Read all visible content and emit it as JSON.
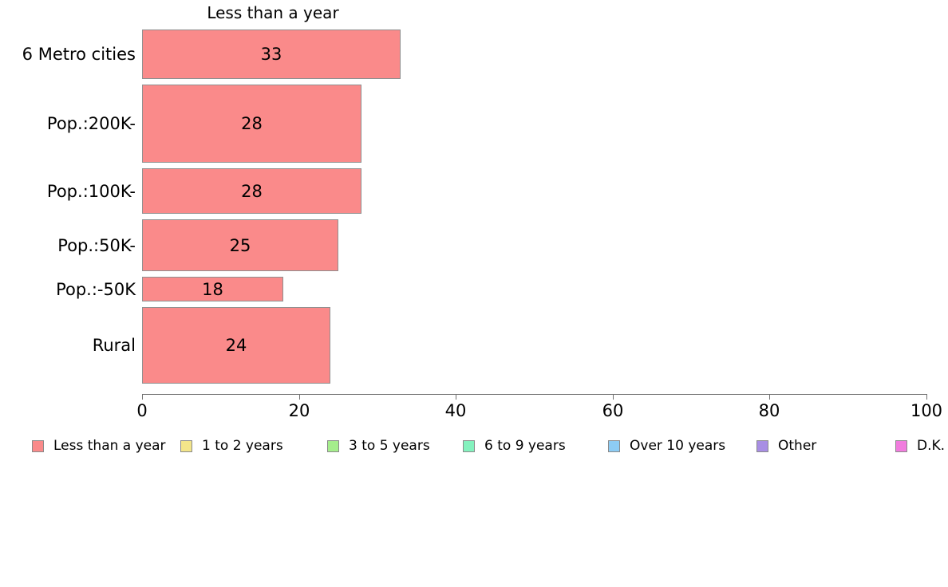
{
  "chart_data": {
    "type": "bar",
    "orientation": "horizontal",
    "title": "Less than a year",
    "categories": [
      "6 Metro cities",
      "Pop.:200K-",
      "Pop.:100K-",
      "Pop.:50K-",
      "Pop.:-50K",
      "Rural"
    ],
    "values": [
      33,
      28,
      28,
      25,
      18,
      24
    ],
    "series_name": "Less than a year",
    "xlim": [
      0,
      100
    ],
    "x_ticks": [
      0,
      20,
      40,
      60,
      80,
      100
    ],
    "grid": false,
    "bar_color": "#FA8A8A",
    "bar_edge_color": "#8F8F8F",
    "bar_thickness_px": [
      62,
      98,
      57,
      65,
      31,
      96
    ],
    "value_labels_inside_bars": true,
    "legend_position": "bottom",
    "legend": [
      {
        "label": "Less than a year",
        "color": "#FA8A8A"
      },
      {
        "label": "1 to 2 years",
        "color": "#F3E58A"
      },
      {
        "label": "3 to 5 years",
        "color": "#A5EE8C"
      },
      {
        "label": "6 to 9 years",
        "color": "#84F2BE"
      },
      {
        "label": "Over 10 years",
        "color": "#8DCCF4"
      },
      {
        "label": "Other",
        "color": "#A88EE4"
      },
      {
        "label": "D.K.",
        "color": "#F17CDE"
      }
    ]
  }
}
